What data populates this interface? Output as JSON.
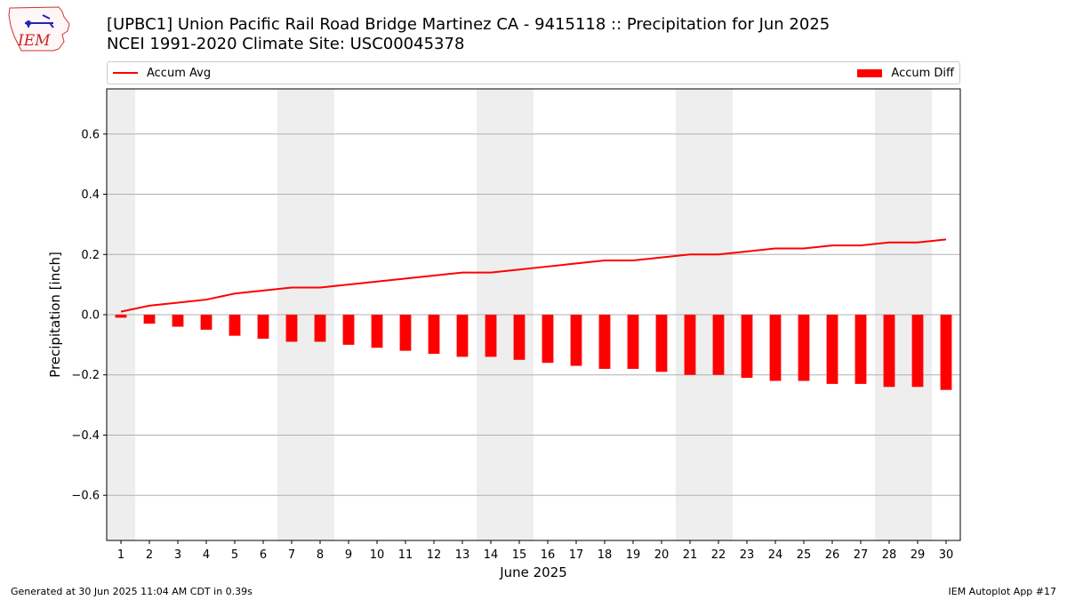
{
  "title_line1": "[UPBC1] Union Pacific Rail Road Bridge  Martinez  CA - 9415118 :: Precipitation for Jun 2025",
  "title_line2": "NCEI 1991-2020 Climate Site: USC00045378",
  "logo_text": "IEM",
  "footer_left": "Generated at 30 Jun 2025 11:04 AM CDT in 0.39s",
  "footer_right": "IEM Autoplot App #17",
  "colors": {
    "series": "#ff0000",
    "weekend": "#eeeeee",
    "grid": "#b0b0b0"
  },
  "chart_data": {
    "type": "bar",
    "xlabel": "June 2025",
    "ylabel": "Precipitation [inch]",
    "x": [
      1,
      2,
      3,
      4,
      5,
      6,
      7,
      8,
      9,
      10,
      11,
      12,
      13,
      14,
      15,
      16,
      17,
      18,
      19,
      20,
      21,
      22,
      23,
      24,
      25,
      26,
      27,
      28,
      29,
      30
    ],
    "xlim": [
      0.5,
      30.5
    ],
    "ylim": [
      -0.75,
      0.75
    ],
    "yticks": [
      -0.6,
      -0.4,
      -0.2,
      0.0,
      0.2,
      0.4,
      0.6
    ],
    "ytick_labels": [
      "−0.6",
      "−0.4",
      "−0.2",
      "0.0",
      "0.2",
      "0.4",
      "0.6"
    ],
    "grid": true,
    "legend": "top",
    "weekend_days": [
      1,
      7,
      8,
      14,
      15,
      21,
      22,
      28,
      29
    ],
    "series": [
      {
        "name": "Accum Avg",
        "type": "line",
        "values": [
          0.01,
          0.03,
          0.04,
          0.05,
          0.07,
          0.08,
          0.09,
          0.09,
          0.1,
          0.11,
          0.12,
          0.13,
          0.14,
          0.14,
          0.15,
          0.16,
          0.17,
          0.18,
          0.18,
          0.19,
          0.2,
          0.2,
          0.21,
          0.22,
          0.22,
          0.23,
          0.23,
          0.24,
          0.24,
          0.25
        ]
      },
      {
        "name": "Accum Diff",
        "type": "bar",
        "values": [
          -0.01,
          -0.03,
          -0.04,
          -0.05,
          -0.07,
          -0.08,
          -0.09,
          -0.09,
          -0.1,
          -0.11,
          -0.12,
          -0.13,
          -0.14,
          -0.14,
          -0.15,
          -0.16,
          -0.17,
          -0.18,
          -0.18,
          -0.19,
          -0.2,
          -0.2,
          -0.21,
          -0.22,
          -0.22,
          -0.23,
          -0.23,
          -0.24,
          -0.24,
          -0.25
        ]
      }
    ]
  }
}
